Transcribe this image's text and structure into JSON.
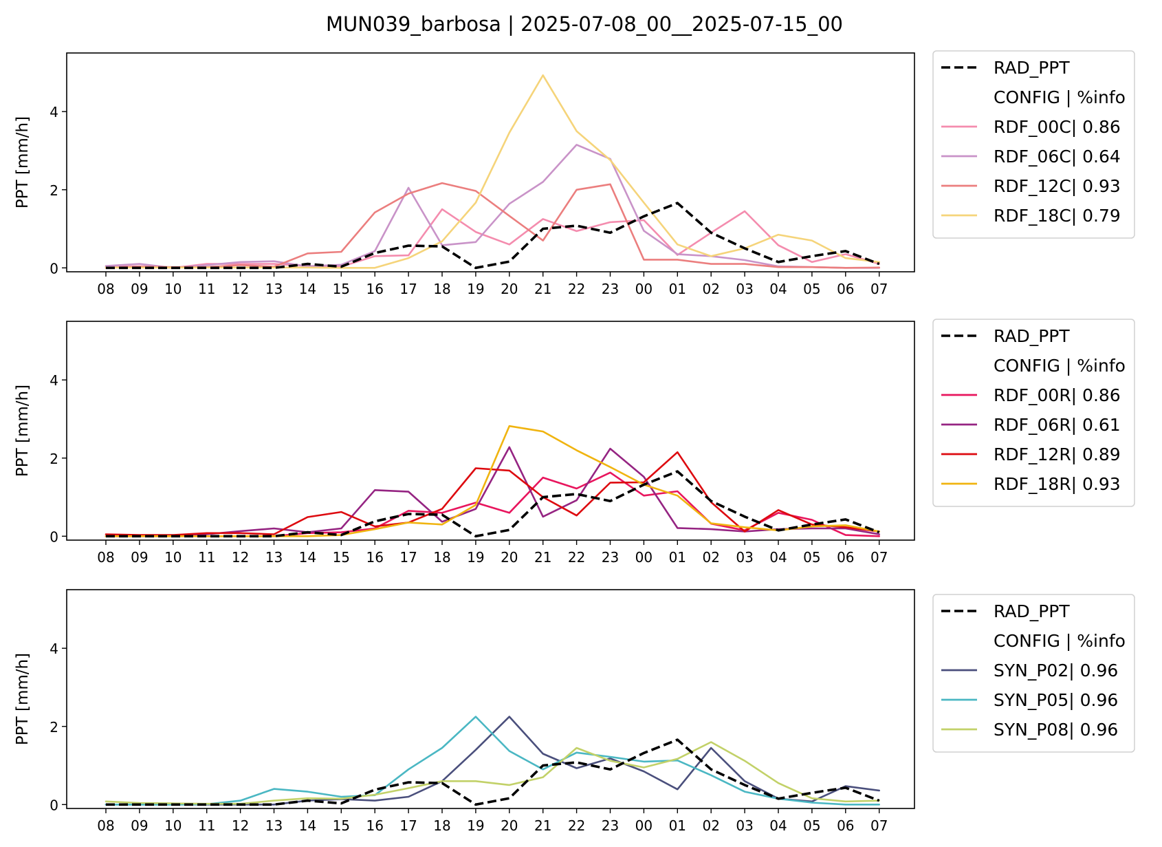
{
  "chart_data": {
    "type": "line",
    "title": "MUN039_barbosa | 2025-07-08_00__2025-07-15_00",
    "x": [
      "08",
      "09",
      "10",
      "11",
      "12",
      "13",
      "14",
      "15",
      "16",
      "17",
      "18",
      "19",
      "20",
      "21",
      "22",
      "23",
      "00",
      "01",
      "02",
      "03",
      "04",
      "05",
      "06",
      "07"
    ],
    "ylabel": "PPT [mm/h]",
    "ylim": [
      -0.1,
      5.5
    ],
    "yticks": [
      0,
      2,
      4
    ],
    "grid": false,
    "legend_position": "outside-right",
    "legend_header": "CONFIG  | %info",
    "reference_series": {
      "name": "RAD_PPT",
      "color": "#000000",
      "style": "dashed",
      "values": [
        0.0,
        0.0,
        0.0,
        0.0,
        0.0,
        0.0,
        0.1,
        0.03,
        0.38,
        0.57,
        0.55,
        0.0,
        0.16,
        1.0,
        1.08,
        0.9,
        1.32,
        1.66,
        0.9,
        0.5,
        0.15,
        0.3,
        0.43,
        0.1
      ]
    },
    "panels": [
      {
        "series": [
          {
            "name": "RDF_00C| 0.86",
            "color": "#F48CAE",
            "values": [
              0.03,
              0.04,
              0.0,
              0.1,
              0.1,
              0.1,
              0.05,
              0.03,
              0.3,
              0.32,
              1.5,
              0.92,
              0.6,
              1.25,
              0.94,
              1.17,
              1.22,
              0.33,
              0.9,
              1.45,
              0.58,
              0.15,
              0.35,
              0.1
            ]
          },
          {
            "name": "RDF_06C| 0.64",
            "color": "#C993C8",
            "values": [
              0.05,
              0.1,
              0.0,
              0.07,
              0.15,
              0.17,
              0.04,
              0.08,
              0.43,
              2.05,
              0.58,
              0.66,
              1.64,
              2.2,
              3.15,
              2.79,
              0.95,
              0.35,
              0.3,
              0.2,
              0.04,
              0.02,
              0.0,
              0.0
            ]
          },
          {
            "name": "RDF_12C| 0.93",
            "color": "#EB7E7E",
            "values": [
              0.0,
              0.03,
              0.02,
              0.02,
              0.07,
              0.03,
              0.37,
              0.41,
              1.42,
              1.9,
              2.17,
              1.97,
              1.33,
              0.7,
              2.0,
              2.14,
              0.21,
              0.21,
              0.1,
              0.1,
              0.02,
              0.02,
              0.0,
              0.01
            ]
          },
          {
            "name": "RDF_18C| 0.79",
            "color": "#F5D47A",
            "values": [
              0.01,
              0.01,
              0.01,
              0.01,
              0.01,
              0.01,
              0.01,
              0.0,
              0.0,
              0.25,
              0.68,
              1.67,
              3.46,
              4.93,
              3.5,
              2.76,
              1.67,
              0.6,
              0.3,
              0.5,
              0.85,
              0.7,
              0.25,
              0.15
            ]
          }
        ]
      },
      {
        "series": [
          {
            "name": "RDF_00R| 0.86",
            "color": "#E8155D",
            "values": [
              0.0,
              0.0,
              0.0,
              0.0,
              0.0,
              0.0,
              0.08,
              0.1,
              0.2,
              0.65,
              0.6,
              0.86,
              0.6,
              1.5,
              1.22,
              1.63,
              1.04,
              1.15,
              0.32,
              0.15,
              0.6,
              0.42,
              0.03,
              0.0
            ]
          },
          {
            "name": "RDF_06R| 0.61",
            "color": "#952482",
            "values": [
              0.0,
              0.0,
              0.0,
              0.05,
              0.13,
              0.2,
              0.1,
              0.2,
              1.18,
              1.14,
              0.37,
              0.7,
              2.28,
              0.5,
              0.92,
              2.24,
              1.52,
              0.21,
              0.18,
              0.12,
              0.18,
              0.2,
              0.2,
              0.05
            ]
          },
          {
            "name": "RDF_12R| 0.89",
            "color": "#DD0A0F",
            "values": [
              0.05,
              0.03,
              0.03,
              0.08,
              0.08,
              0.05,
              0.49,
              0.62,
              0.25,
              0.35,
              0.7,
              1.74,
              1.68,
              1.0,
              0.53,
              1.37,
              1.38,
              2.15,
              0.87,
              0.12,
              0.67,
              0.3,
              0.23,
              0.12
            ]
          },
          {
            "name": "RDF_18R| 0.93",
            "color": "#F0B410",
            "values": [
              0.0,
              0.0,
              0.0,
              0.0,
              0.0,
              0.0,
              0.0,
              0.03,
              0.18,
              0.35,
              0.3,
              0.8,
              2.82,
              2.68,
              2.2,
              1.77,
              1.32,
              1.04,
              0.33,
              0.23,
              0.15,
              0.25,
              0.28,
              0.12
            ]
          }
        ]
      },
      {
        "series": [
          {
            "name": "SYN_P02| 0.96",
            "color": "#4A4F7C",
            "values": [
              0.0,
              0.0,
              0.0,
              0.0,
              0.0,
              0.0,
              0.1,
              0.14,
              0.1,
              0.2,
              0.6,
              1.4,
              2.25,
              1.3,
              0.93,
              1.18,
              0.85,
              0.39,
              1.45,
              0.6,
              0.15,
              0.08,
              0.47,
              0.36
            ]
          },
          {
            "name": "SYN_P05| 0.96",
            "color": "#4AB7C3",
            "values": [
              0.0,
              0.0,
              0.0,
              0.01,
              0.1,
              0.4,
              0.33,
              0.2,
              0.24,
              0.9,
              1.45,
              2.25,
              1.37,
              0.9,
              1.33,
              1.22,
              1.1,
              1.13,
              0.75,
              0.33,
              0.15,
              0.05,
              0.0,
              0.0
            ]
          },
          {
            "name": "SYN_P08| 0.96",
            "color": "#C2D168",
            "values": [
              0.08,
              0.04,
              0.03,
              0.02,
              0.02,
              0.1,
              0.16,
              0.15,
              0.25,
              0.42,
              0.6,
              0.6,
              0.5,
              0.7,
              1.45,
              1.12,
              0.95,
              1.17,
              1.6,
              1.12,
              0.55,
              0.16,
              0.08,
              0.1
            ]
          }
        ]
      }
    ]
  }
}
